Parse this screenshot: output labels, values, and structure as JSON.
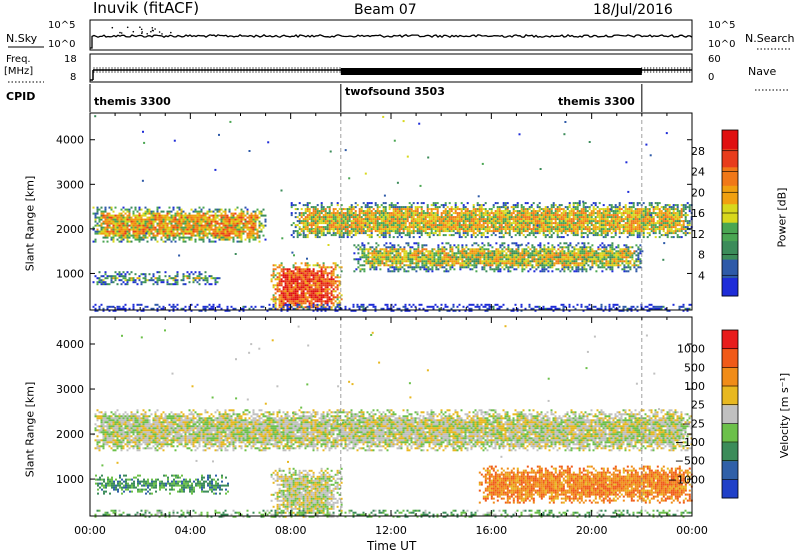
{
  "header": {
    "station": "Inuvik (fitACF)",
    "beam": "Beam 07",
    "date": "18/Jul/2016"
  },
  "top_panels": {
    "nsky_label": "N.Sky",
    "nsky_ticks": [
      "10^5",
      "10^0"
    ],
    "nsearch_label": "N.Search",
    "nsearch_ticks": [
      "10^5",
      "10^0"
    ],
    "freq_label": "Freq.",
    "freq_unit": "[MHz]",
    "freq_ticks": [
      "18",
      "8"
    ],
    "nave_label": "Nave",
    "nave_ticks": [
      "60",
      "0"
    ],
    "cpid_label": "CPID",
    "cpid_segments": [
      {
        "label": "themis 3300",
        "start_h": 0,
        "end_h": 10
      },
      {
        "label": "twofsound 3503",
        "start_h": 10,
        "end_h": 22
      },
      {
        "label": "themis 3300",
        "start_h": 22,
        "end_h": 24
      }
    ]
  },
  "chart_data": [
    {
      "type": "heatmap",
      "title": "Power",
      "xlabel": "Time UT",
      "ylabel": "Slant Range [km]",
      "xlim_hours": [
        0,
        24
      ],
      "ylim": [
        180,
        4600
      ],
      "x_ticks": [
        "00:00",
        "04:00",
        "08:00",
        "12:00",
        "16:00",
        "20:00",
        "00:00"
      ],
      "y_ticks": [
        1000,
        2000,
        3000,
        4000
      ],
      "colorbar": {
        "label": "Power [dB]",
        "ticks": [
          4,
          8,
          12,
          16,
          20,
          24,
          28
        ],
        "colors": [
          "#1e2cd8",
          "#2e5aa8",
          "#3c8c5a",
          "#4aa652",
          "#d8d81c",
          "#f0a010",
          "#f07818",
          "#e83c1c",
          "#e01010"
        ]
      },
      "regions": [
        {
          "t0": 0.1,
          "t1": 7.0,
          "r0": 1700,
          "r1": 2500,
          "level": 0.6
        },
        {
          "t0": 0.1,
          "t1": 5.2,
          "r0": 750,
          "r1": 1050,
          "level": 0.45
        },
        {
          "t0": 7.2,
          "t1": 10.0,
          "r0": 180,
          "r1": 1250,
          "level": 0.85
        },
        {
          "t0": 8.0,
          "t1": 24.0,
          "r0": 1800,
          "r1": 2600,
          "level": 0.55
        },
        {
          "t0": 10.5,
          "t1": 22.0,
          "r0": 1050,
          "r1": 1700,
          "level": 0.5
        },
        {
          "t0": 0.1,
          "t1": 24.0,
          "r0": 180,
          "r1": 320,
          "level": 0.3
        }
      ]
    },
    {
      "type": "heatmap",
      "title": "Velocity",
      "xlabel": "Time UT",
      "ylabel": "Slant Range [km]",
      "xlim_hours": [
        0,
        24
      ],
      "ylim": [
        180,
        4600
      ],
      "x_ticks": [
        "00:00",
        "04:00",
        "08:00",
        "12:00",
        "16:00",
        "20:00",
        "00:00"
      ],
      "y_ticks": [
        1000,
        2000,
        3000,
        4000
      ],
      "colorbar": {
        "label": "Velocity [m s⁻¹]",
        "ticks": [
          "1000",
          "500",
          "100",
          "25",
          "−25",
          "−100",
          "−500",
          "−1000"
        ],
        "colors": [
          "#2040c8",
          "#3060a8",
          "#3c8c5a",
          "#6cc04a",
          "#c0c0c0",
          "#e8b820",
          "#f08c18",
          "#f05a18",
          "#e81c1c"
        ]
      },
      "regions": [
        {
          "t0": 0.1,
          "t1": 24.0,
          "r0": 1650,
          "r1": 2550,
          "level": 0.5
        },
        {
          "t0": 0.2,
          "t1": 5.5,
          "r0": 700,
          "r1": 1100,
          "level": 0.3
        },
        {
          "t0": 7.2,
          "t1": 10.0,
          "r0": 180,
          "r1": 1250,
          "level": 0.5
        },
        {
          "t0": 15.5,
          "t1": 24.0,
          "r0": 500,
          "r1": 1300,
          "level": 0.75
        },
        {
          "t0": 0.1,
          "t1": 24.0,
          "r0": 180,
          "r1": 320,
          "level": 0.35
        }
      ]
    }
  ]
}
